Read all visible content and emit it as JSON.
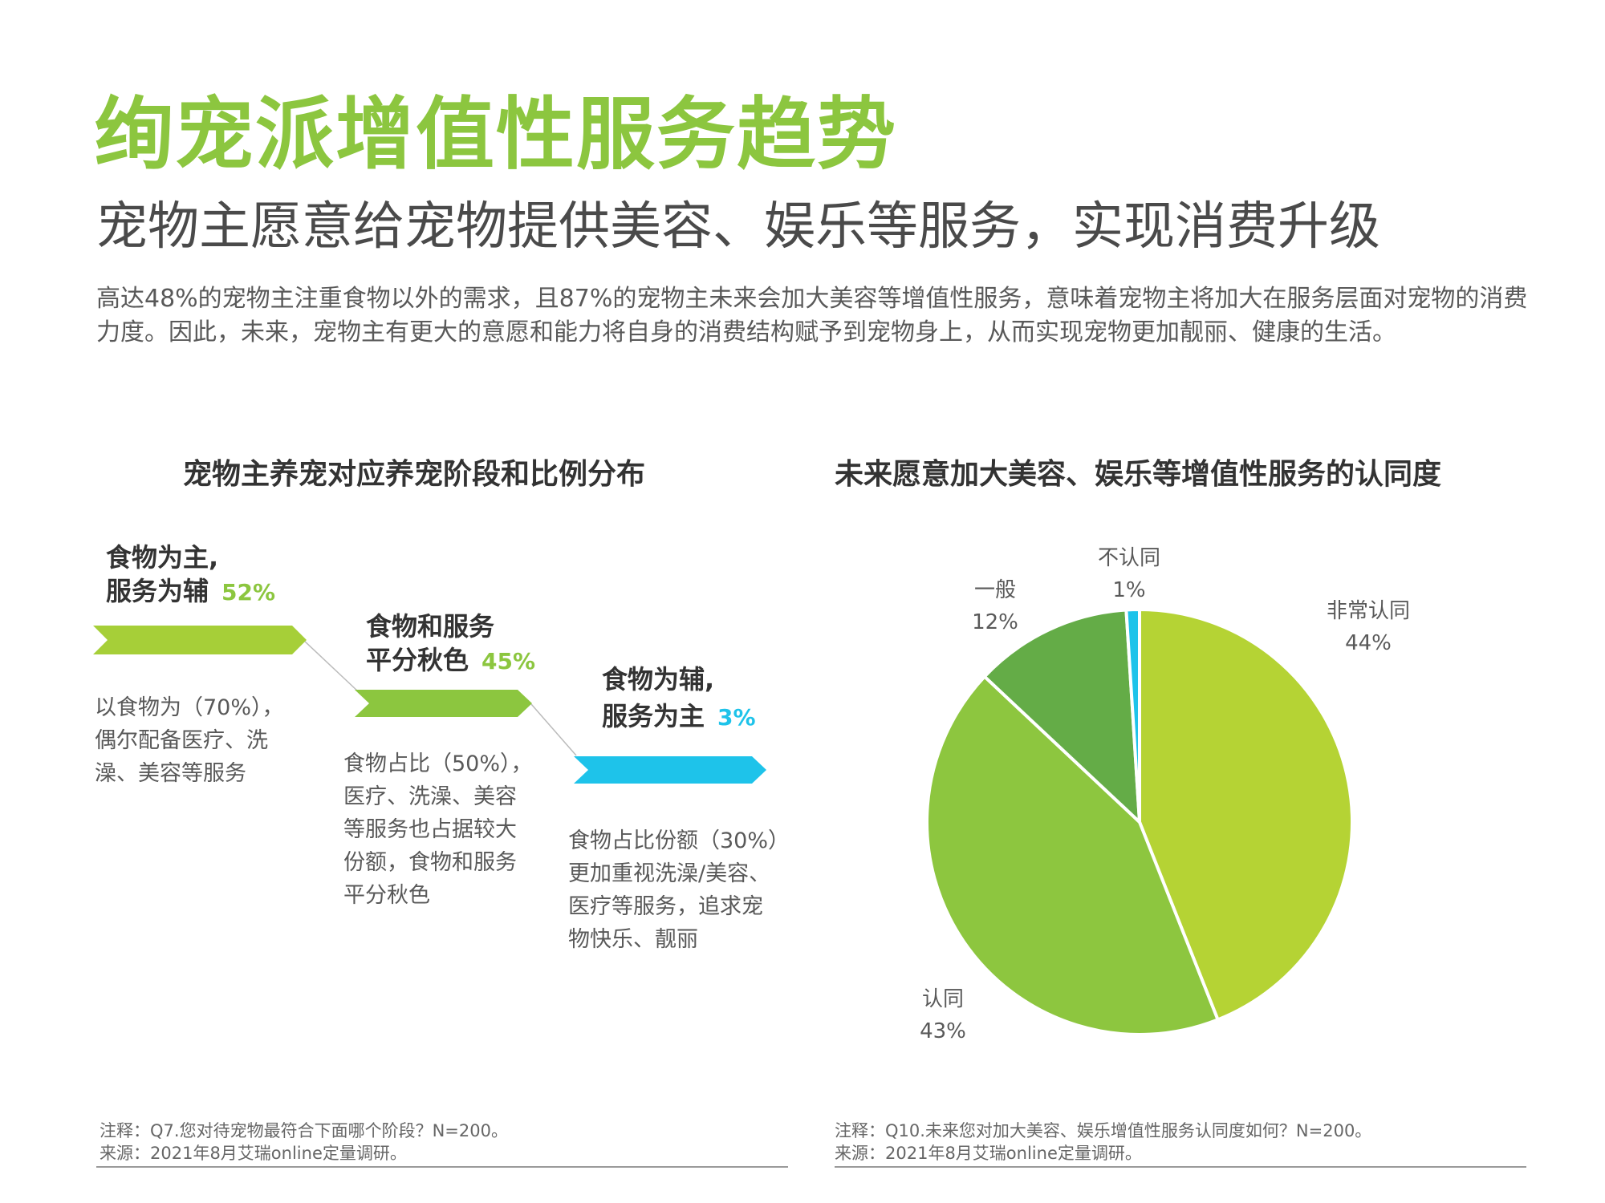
{
  "header": {
    "title": "绚宠派增值性服务趋势",
    "subtitle": "宠物主愿意给宠物提供美容、娱乐等服务，实现消费升级",
    "intro": "高达48%的宠物主注重食物以外的需求，且87%的宠物主未来会加大美容等增值性服务，意味着宠物主将加大在服务层面对宠物的消费力度。因此，未来，宠物主有更大的意愿和能力将自身的消费结构赋予到宠物身上，从而实现宠物更加靓丽、健康的生活。"
  },
  "left_chart": {
    "title": "宠物主养宠对应养宠阶段和比例分布",
    "stages": [
      {
        "line1": "食物为主,",
        "line2": "服务为辅",
        "pct": "52%",
        "color": "#a6cf38",
        "desc": [
          "以食物为（70%），",
          "偶尔配备医疗、洗",
          "澡、美容等服务"
        ]
      },
      {
        "line1": "食物和服务",
        "line2": "平分秋色",
        "pct": "45%",
        "color": "#8cc63f",
        "desc": [
          "食物占比（50%），",
          "医疗、洗澡、美容",
          "等服务也占据较大",
          "份额，食物和服务",
          "平分秋色"
        ]
      },
      {
        "line1": "食物为辅,",
        "line2": "服务为主",
        "pct": "3%",
        "color": "#1ec3ea",
        "desc": [
          "食物占比份额（30%）",
          "更加重视洗澡/美容、",
          "医疗等服务，追求宠",
          "物快乐、靓丽"
        ]
      }
    ],
    "note": "注释：Q7.您对待宠物最符合下面哪个阶段？N=200。",
    "source": "来源：2021年8月艾瑞online定量调研。"
  },
  "right_chart": {
    "title": "未来愿意加大美容、娱乐等增值性服务的认同度",
    "note": "注释：Q10.未来您对加大美容、娱乐增值性服务认同度如何？N=200。",
    "source": "来源：2021年8月艾瑞online定量调研。"
  },
  "chart_data": {
    "type": "pie",
    "slices": [
      {
        "label": "非常认同",
        "value": 44,
        "value_label": "44%",
        "color": "#b5d334"
      },
      {
        "label": "认同",
        "value": 43,
        "value_label": "43%",
        "color": "#8dc63f"
      },
      {
        "label": "一般",
        "value": 12,
        "value_label": "12%",
        "color": "#64ac47"
      },
      {
        "label": "不认同",
        "value": 1,
        "value_label": "1%",
        "color": "#1ec3ea"
      }
    ]
  }
}
